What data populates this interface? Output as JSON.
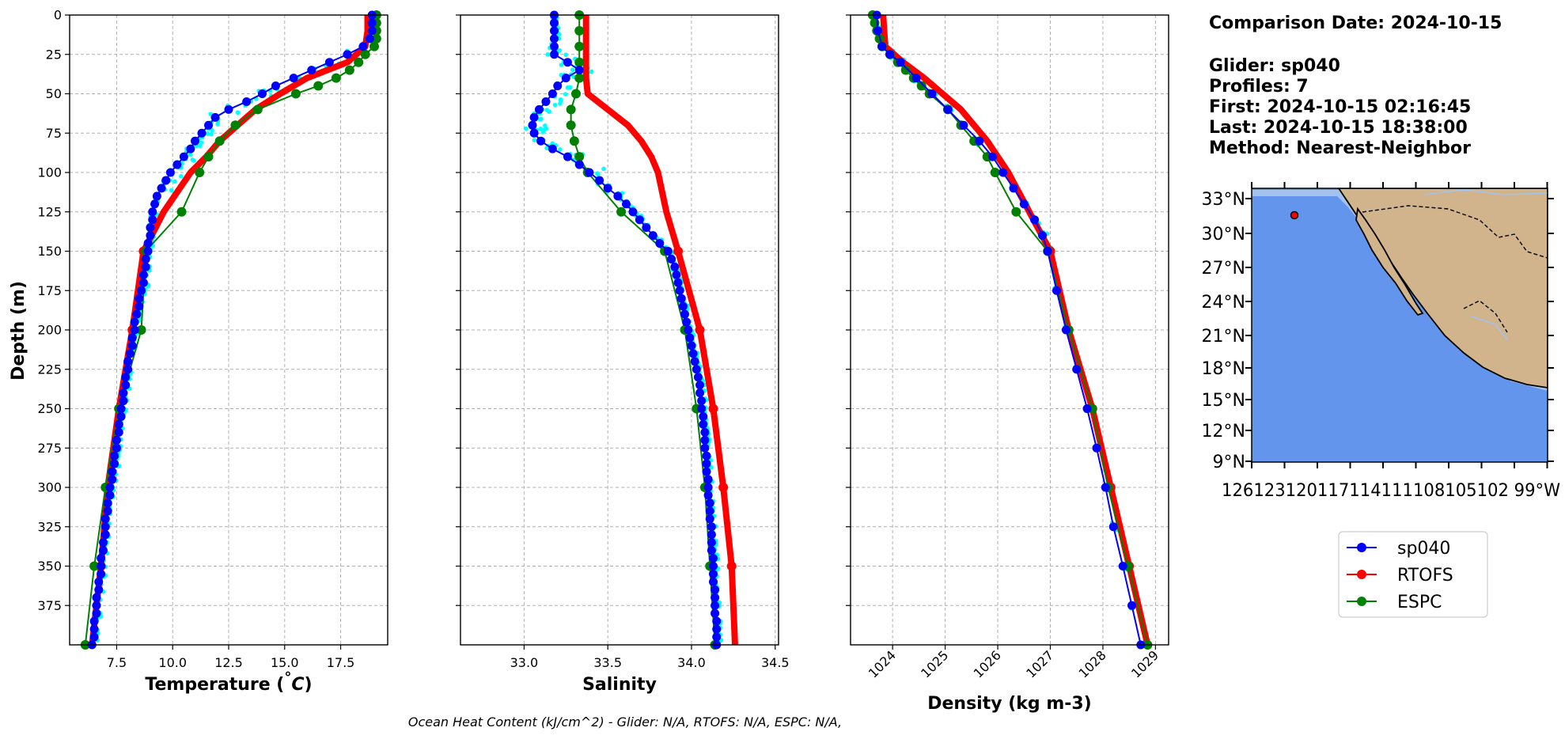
{
  "colors": {
    "sp040": "#0000ff",
    "RTOFS": "#ff0000",
    "ESPC": "#008000",
    "glider_raw": "#00ffff",
    "ocean": "#6495ed",
    "land": "#d2b48c",
    "shelf": "#a4c2ee"
  },
  "info": {
    "lines": [
      "Comparison Date: 2024-10-15",
      "",
      "Glider: sp040",
      "Profiles: 7",
      "First: 2024-10-15 02:16:45",
      "Last: 2024-10-15 18:38:00",
      "Method: Nearest-Neighbor"
    ]
  },
  "footer": "Ocean Heat Content (kJ/cm^2) - Glider: N/A,  RTOFS: N/A,  ESPC: N/A,",
  "legend": [
    "sp040",
    "RTOFS",
    "ESPC"
  ],
  "map": {
    "lat_ticks": [
      "33°N",
      "30°N",
      "27°N",
      "24°N",
      "21°N",
      "18°N",
      "15°N",
      "12°N",
      "9°N"
    ],
    "lon_label_text": "126123120117114111108105102 99°W",
    "lat_range": [
      7.5,
      34
    ],
    "lon_range": [
      -126.5,
      -97.5
    ],
    "glider_position": {
      "lon": -122.5,
      "lat": 31.5
    }
  },
  "chart_data": [
    {
      "type": "line",
      "xlabel": "Temperature (°C)",
      "ylabel": "Depth (m)",
      "xlim": [
        5.4,
        19.6
      ],
      "ylim": [
        400,
        0
      ],
      "x_ticks": [
        "7.5",
        "10.0",
        "12.5",
        "15.0",
        "17.5"
      ],
      "x_tick_values": [
        7.5,
        10.0,
        12.5,
        15.0,
        17.5
      ],
      "y_ticks": [
        "0",
        "25",
        "50",
        "75",
        "100",
        "125",
        "150",
        "175",
        "200",
        "225",
        "250",
        "275",
        "300",
        "325",
        "350",
        "375"
      ],
      "y_tick_values": [
        0,
        25,
        50,
        75,
        100,
        125,
        150,
        175,
        200,
        225,
        250,
        275,
        300,
        325,
        350,
        375
      ],
      "grid": true,
      "series": [
        {
          "name": "sp040",
          "depth": [
            0,
            5,
            10,
            15,
            20,
            25,
            30,
            35,
            40,
            45,
            50,
            55,
            60,
            65,
            70,
            75,
            80,
            85,
            90,
            95,
            100,
            105,
            110,
            115,
            120,
            125,
            130,
            135,
            140,
            145,
            150,
            155,
            160,
            165,
            170,
            175,
            180,
            185,
            190,
            195,
            200,
            205,
            210,
            215,
            220,
            225,
            230,
            235,
            240,
            245,
            250,
            255,
            260,
            265,
            270,
            275,
            280,
            285,
            290,
            295,
            300,
            305,
            310,
            315,
            320,
            325,
            330,
            335,
            340,
            345,
            350,
            355,
            360,
            365,
            370,
            375,
            380,
            385,
            390,
            395,
            400
          ],
          "values": [
            18.9,
            18.9,
            18.9,
            18.8,
            18.5,
            17.8,
            17.0,
            16.2,
            15.4,
            14.6,
            14.0,
            13.3,
            12.5,
            11.9,
            11.6,
            11.3,
            11.0,
            10.8,
            10.5,
            10.2,
            9.9,
            9.7,
            9.5,
            9.3,
            9.2,
            9.1,
            9.1,
            9.0,
            9.0,
            8.9,
            8.9,
            8.8,
            8.8,
            8.7,
            8.7,
            8.6,
            8.5,
            8.5,
            8.4,
            8.3,
            8.3,
            8.2,
            8.2,
            8.1,
            8.0,
            8.0,
            7.9,
            7.9,
            7.8,
            7.8,
            7.7,
            7.7,
            7.6,
            7.6,
            7.5,
            7.5,
            7.4,
            7.4,
            7.3,
            7.3,
            7.2,
            7.2,
            7.1,
            7.1,
            7.0,
            7.0,
            7.0,
            6.9,
            6.9,
            6.8,
            6.8,
            6.8,
            6.7,
            6.7,
            6.6,
            6.6,
            6.6,
            6.5,
            6.5,
            6.5,
            6.4
          ]
        },
        {
          "name": "RTOFS",
          "depth": [
            0,
            10,
            20,
            30,
            40,
            50,
            60,
            70,
            80,
            90,
            100,
            125,
            150,
            200,
            250,
            300,
            350,
            400
          ],
          "values": [
            18.7,
            18.7,
            18.6,
            17.8,
            16.0,
            14.8,
            13.7,
            12.9,
            12.1,
            11.5,
            10.8,
            9.6,
            8.7,
            8.2,
            7.6,
            7.1,
            6.8,
            6.4
          ]
        },
        {
          "name": "ESPC",
          "depth": [
            0,
            5,
            10,
            15,
            20,
            25,
            30,
            35,
            40,
            45,
            50,
            60,
            70,
            80,
            90,
            100,
            125,
            150,
            200,
            250,
            300,
            350,
            400
          ],
          "values": [
            19.1,
            19.1,
            19.1,
            19.1,
            19.0,
            18.6,
            18.3,
            17.9,
            17.3,
            16.5,
            15.5,
            13.8,
            12.8,
            12.1,
            11.6,
            11.2,
            10.4,
            8.8,
            8.6,
            7.6,
            7.0,
            6.5,
            6.1
          ]
        }
      ]
    },
    {
      "type": "line",
      "xlabel": "Salinity",
      "xlim": [
        32.62,
        34.52
      ],
      "ylim": [
        400,
        0
      ],
      "x_ticks": [
        "33.0",
        "33.5",
        "34.0",
        "34.5"
      ],
      "x_tick_values": [
        33.0,
        33.5,
        34.0,
        34.5
      ],
      "grid": true,
      "series": [
        {
          "name": "sp040",
          "depth": [
            0,
            5,
            10,
            15,
            20,
            25,
            30,
            35,
            40,
            45,
            50,
            55,
            60,
            65,
            70,
            75,
            80,
            85,
            90,
            95,
            100,
            105,
            110,
            115,
            120,
            125,
            130,
            135,
            140,
            145,
            150,
            155,
            160,
            165,
            170,
            175,
            180,
            185,
            190,
            195,
            200,
            205,
            210,
            215,
            220,
            225,
            230,
            235,
            240,
            245,
            250,
            255,
            260,
            265,
            270,
            275,
            280,
            285,
            290,
            295,
            300,
            305,
            310,
            315,
            320,
            325,
            330,
            335,
            340,
            345,
            350,
            355,
            360,
            365,
            370,
            375,
            380,
            385,
            390,
            395,
            400
          ],
          "values": [
            33.18,
            33.18,
            33.18,
            33.18,
            33.18,
            33.18,
            33.26,
            33.33,
            33.25,
            33.2,
            33.17,
            33.13,
            33.09,
            33.06,
            33.05,
            33.06,
            33.1,
            33.17,
            33.26,
            33.33,
            33.39,
            33.45,
            33.5,
            33.56,
            33.61,
            33.65,
            33.69,
            33.73,
            33.77,
            33.81,
            33.86,
            33.88,
            33.9,
            33.91,
            33.92,
            33.93,
            33.94,
            33.95,
            33.96,
            33.97,
            33.98,
            33.99,
            34.0,
            34.01,
            34.02,
            34.03,
            34.04,
            34.05,
            34.05,
            34.06,
            34.06,
            34.07,
            34.07,
            34.08,
            34.08,
            34.08,
            34.09,
            34.09,
            34.09,
            34.1,
            34.1,
            34.1,
            34.11,
            34.11,
            34.11,
            34.12,
            34.12,
            34.12,
            34.12,
            34.13,
            34.13,
            34.13,
            34.13,
            34.14,
            34.14,
            34.14,
            34.14,
            34.15,
            34.15,
            34.15,
            34.15
          ]
        },
        {
          "name": "RTOFS",
          "depth": [
            0,
            10,
            20,
            30,
            40,
            50,
            60,
            70,
            80,
            90,
            100,
            125,
            150,
            200,
            250,
            300,
            350,
            400
          ],
          "values": [
            33.37,
            33.37,
            33.37,
            33.37,
            33.37,
            33.38,
            33.5,
            33.62,
            33.7,
            33.76,
            33.8,
            33.85,
            33.92,
            34.05,
            34.13,
            34.19,
            34.24,
            34.26
          ]
        },
        {
          "name": "ESPC",
          "depth": [
            0,
            10,
            20,
            30,
            40,
            50,
            60,
            70,
            80,
            90,
            100,
            125,
            150,
            200,
            250,
            300,
            350,
            400
          ],
          "values": [
            33.33,
            33.33,
            33.33,
            33.33,
            33.33,
            33.31,
            33.28,
            33.28,
            33.3,
            33.33,
            33.38,
            33.58,
            33.84,
            33.96,
            34.03,
            34.08,
            34.11,
            34.14
          ]
        }
      ]
    },
    {
      "type": "line",
      "xlabel": "Density (kg m-3)",
      "xlim": [
        1023.2,
        1029.25
      ],
      "ylim": [
        400,
        0
      ],
      "x_ticks": [
        "1024",
        "1025",
        "1026",
        "1027",
        "1028",
        "1029"
      ],
      "x_tick_values": [
        1024,
        1025,
        1026,
        1027,
        1028,
        1029
      ],
      "grid": true,
      "series": [
        {
          "name": "sp040",
          "depth": [
            0,
            10,
            20,
            25,
            30,
            40,
            50,
            60,
            70,
            80,
            90,
            100,
            110,
            120,
            130,
            140,
            150,
            175,
            200,
            225,
            250,
            275,
            300,
            325,
            350,
            375,
            400
          ],
          "values": [
            1023.7,
            1023.72,
            1023.8,
            1023.95,
            1024.15,
            1024.45,
            1024.75,
            1025.05,
            1025.35,
            1025.65,
            1025.9,
            1026.1,
            1026.3,
            1026.5,
            1026.7,
            1026.85,
            1026.95,
            1027.12,
            1027.3,
            1027.5,
            1027.7,
            1027.88,
            1028.05,
            1028.2,
            1028.38,
            1028.55,
            1028.72
          ]
        },
        {
          "name": "RTOFS",
          "depth": [
            0,
            10,
            20,
            30,
            40,
            50,
            60,
            70,
            80,
            90,
            100,
            125,
            150,
            200,
            250,
            300,
            350,
            400
          ],
          "values": [
            1023.82,
            1023.84,
            1023.86,
            1024.2,
            1024.6,
            1024.95,
            1025.3,
            1025.55,
            1025.8,
            1026.0,
            1026.2,
            1026.6,
            1027.0,
            1027.35,
            1027.8,
            1028.15,
            1028.5,
            1028.85
          ]
        },
        {
          "name": "ESPC",
          "depth": [
            0,
            5,
            10,
            15,
            20,
            25,
            30,
            35,
            40,
            45,
            50,
            60,
            70,
            80,
            90,
            100,
            125,
            150,
            200,
            250,
            300,
            350,
            400
          ],
          "values": [
            1023.62,
            1023.66,
            1023.7,
            1023.75,
            1023.8,
            1023.95,
            1024.1,
            1024.25,
            1024.4,
            1024.55,
            1024.7,
            1025.05,
            1025.3,
            1025.55,
            1025.8,
            1025.95,
            1026.35,
            1026.95,
            1027.35,
            1027.8,
            1028.1,
            1028.48,
            1028.85
          ]
        }
      ]
    }
  ]
}
